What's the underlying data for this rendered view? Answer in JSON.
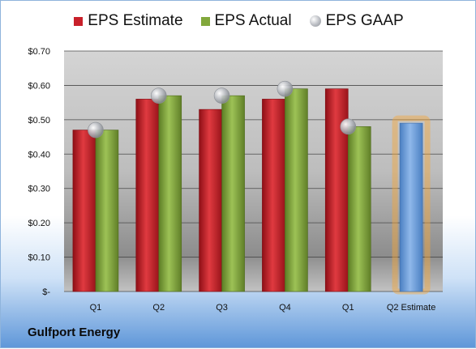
{
  "chart_data": {
    "type": "bar",
    "categories": [
      "Q1",
      "Q2",
      "Q3",
      "Q4",
      "Q1",
      "Q2 Estimate"
    ],
    "series": [
      {
        "name": "EPS Estimate",
        "color": "#c8202a",
        "values": [
          0.47,
          0.56,
          0.53,
          0.56,
          0.59,
          null
        ]
      },
      {
        "name": "EPS Actual",
        "color": "#82a83c",
        "values": [
          0.47,
          0.57,
          0.57,
          0.59,
          0.48,
          null
        ]
      },
      {
        "name": "EPS GAAP",
        "color": "#a9acb2",
        "values": [
          0.47,
          0.57,
          0.57,
          0.59,
          0.48,
          null
        ]
      }
    ],
    "estimate": {
      "category": "Q2 Estimate",
      "value": 0.49,
      "color": "#6d9fdb",
      "glow_color": "#f5a63a"
    },
    "y_ticks": [
      0,
      0.1,
      0.2,
      0.3,
      0.4,
      0.5,
      0.6,
      0.7
    ],
    "y_tick_labels": [
      "$-",
      "$0.10",
      "$0.20",
      "$0.30",
      "$0.40",
      "$0.50",
      "$0.60",
      "$0.70"
    ],
    "ylim": [
      0,
      0.7
    ],
    "grid": true,
    "legend_position": "top"
  },
  "legend": {
    "estimate_label": "EPS Estimate",
    "actual_label": "EPS Actual",
    "gaap_label": "EPS GAAP"
  },
  "company": "Gulfport Energy"
}
